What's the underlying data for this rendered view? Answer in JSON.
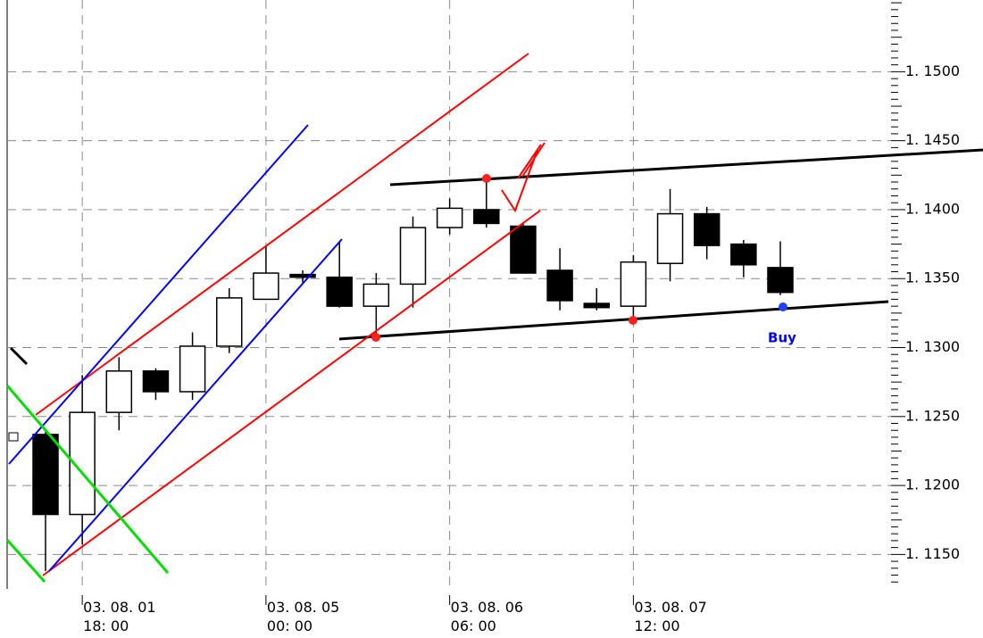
{
  "chart_data": {
    "type": "candlestick",
    "categories": [
      null,
      "03. 08. 01\n18: 00",
      null,
      null,
      null,
      null,
      "03. 08. 05\n00: 00",
      null,
      null,
      null,
      null,
      "03. 08. 06\n06: 00",
      null,
      null,
      null,
      null,
      "03. 08. 07\n12: 00",
      null,
      null,
      null,
      null
    ],
    "open": [
      1.1237,
      1.1179,
      1.1253,
      1.1283,
      1.1268,
      1.1301,
      1.1335,
      1.1353,
      1.1351,
      1.133,
      1.1346,
      1.1387,
      1.14,
      1.1388,
      1.1356,
      1.1332,
      1.133,
      1.1361,
      1.1397,
      1.1375,
      1.1358
    ],
    "high": [
      1.1239,
      1.128,
      1.1293,
      1.1285,
      1.1311,
      1.1343,
      1.1374,
      1.1356,
      1.1376,
      1.1354,
      1.1395,
      1.1408,
      1.1422,
      1.1391,
      1.1372,
      1.1343,
      1.1367,
      1.1415,
      1.1402,
      1.1378,
      1.1377
    ],
    "low": [
      1.1138,
      1.1157,
      1.124,
      1.1262,
      1.1262,
      1.1296,
      1.1335,
      1.1347,
      1.1329,
      1.1309,
      1.1329,
      1.1382,
      1.1387,
      1.1354,
      1.1327,
      1.1327,
      1.1319,
      1.1348,
      1.1364,
      1.1351,
      1.1338
    ],
    "close": [
      1.1179,
      1.1253,
      1.1283,
      1.1268,
      1.1301,
      1.1336,
      1.1354,
      1.1351,
      1.133,
      1.1346,
      1.1387,
      1.1401,
      1.139,
      1.1354,
      1.1334,
      1.1329,
      1.1362,
      1.1397,
      1.1374,
      1.136,
      1.134
    ],
    "ylim": [
      1.1125,
      1.1552
    ],
    "yticks": [
      {
        "value": 1.115,
        "label": "1. 1150"
      },
      {
        "value": 1.12,
        "label": "1. 1200"
      },
      {
        "value": 1.125,
        "label": "1. 1250"
      },
      {
        "value": 1.13,
        "label": "1. 1300"
      },
      {
        "value": 1.135,
        "label": "1. 1350"
      },
      {
        "value": 1.14,
        "label": "1. 1400"
      },
      {
        "value": 1.145,
        "label": "1. 1450"
      },
      {
        "value": 1.15,
        "label": "1. 1500"
      }
    ],
    "grid": true,
    "annotations": [
      {
        "text": "Buy",
        "color": "#0000ff"
      }
    ]
  }
}
